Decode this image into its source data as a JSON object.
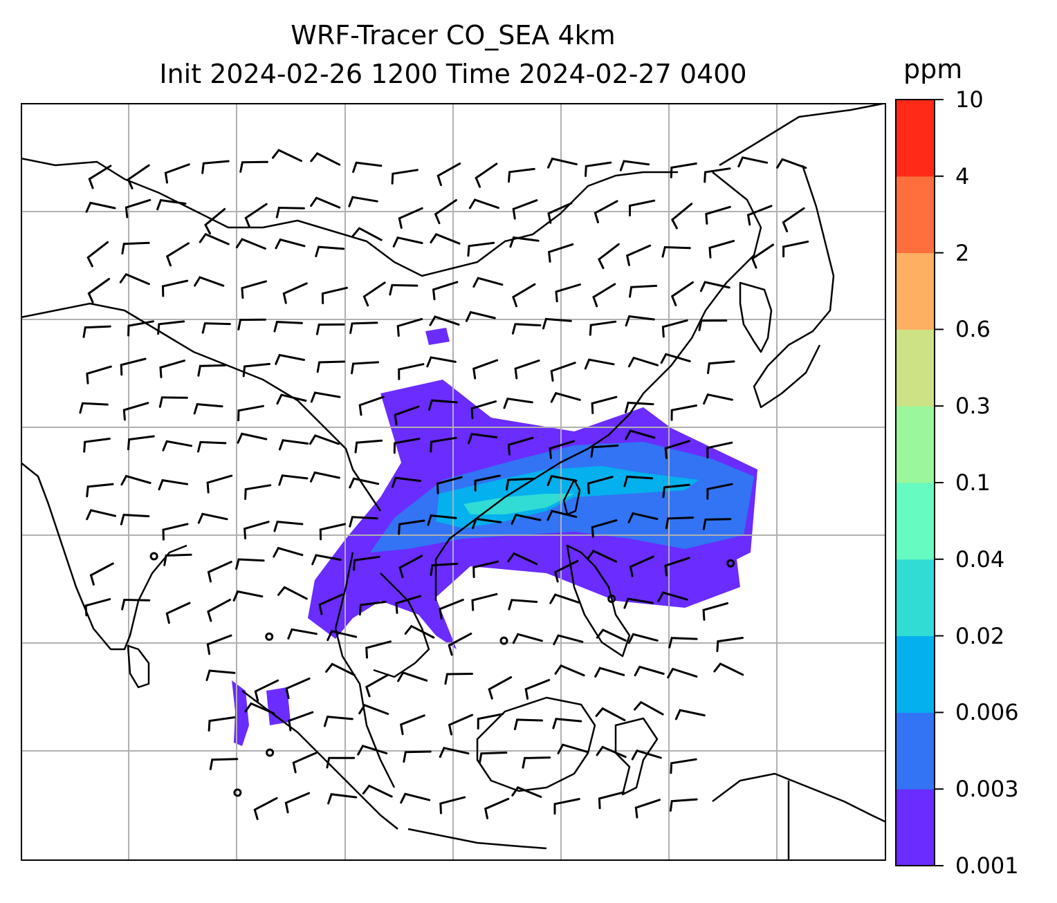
{
  "title": {
    "line1": "WRF-Tracer CO_SEA 4km",
    "line2": "Init 2024-02-26 1200 Time 2024-02-27 0400"
  },
  "colorbar": {
    "unit": "ppm",
    "levels": [
      "0.001",
      "0.003",
      "0.006",
      "0.02",
      "0.04",
      "0.1",
      "0.3",
      "0.6",
      "2",
      "4",
      "10"
    ],
    "colors": [
      "#6a2cff",
      "#3274f3",
      "#04b0ed",
      "#30dcd4",
      "#66fbc0",
      "#9af79b",
      "#cde285",
      "#fdb062",
      "#ff6f3d",
      "#ff2a17"
    ]
  },
  "map": {
    "background": "#ffffff",
    "coastline_color": "#000000",
    "grid_color": "#b0b0b0",
    "barb_color": "#000000",
    "gridlines": true
  }
}
